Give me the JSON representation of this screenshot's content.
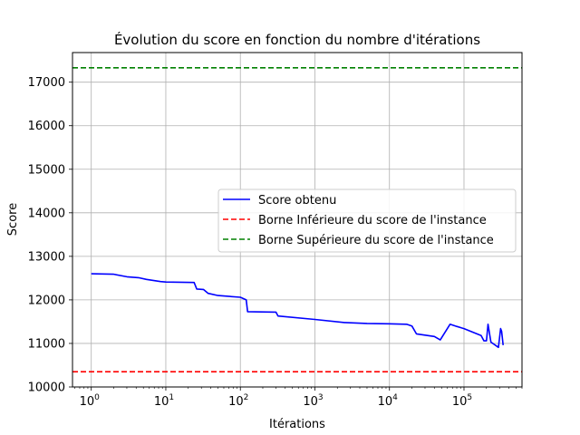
{
  "chart_data": {
    "type": "line",
    "title": "Évolution du score en fonction du nombre d'itérations",
    "xlabel": "Itérations",
    "ylabel": "Score",
    "xscale": "log",
    "xlim": [
      0.56,
      600000
    ],
    "ylim": [
      10000,
      17680
    ],
    "grid": true,
    "legend_position": "center-right",
    "x_ticks": [
      {
        "base": "10",
        "exp": "0",
        "value": 1
      },
      {
        "base": "10",
        "exp": "1",
        "value": 10
      },
      {
        "base": "10",
        "exp": "2",
        "value": 100
      },
      {
        "base": "10",
        "exp": "3",
        "value": 1000
      },
      {
        "base": "10",
        "exp": "4",
        "value": 10000
      },
      {
        "base": "10",
        "exp": "5",
        "value": 100000
      }
    ],
    "y_ticks": [
      "10000",
      "11000",
      "12000",
      "13000",
      "14000",
      "15000",
      "16000",
      "17000"
    ],
    "series": [
      {
        "name": "Score obtenu",
        "color": "#0000ff",
        "style": "solid",
        "x": [
          1,
          2,
          3,
          4.3,
          5.5,
          8.5,
          10,
          24,
          26,
          32,
          37,
          50,
          100,
          120,
          125,
          300,
          320,
          1000,
          2500,
          5000,
          10000,
          17000,
          20000,
          23000,
          40000,
          48000,
          65000,
          80000,
          100000,
          170000,
          185000,
          200000,
          210000,
          230000,
          290000,
          310000,
          320000,
          335000
        ],
        "y": [
          12600,
          12590,
          12530,
          12510,
          12470,
          12420,
          12410,
          12400,
          12250,
          12240,
          12150,
          12100,
          12060,
          12000,
          11730,
          11720,
          11630,
          11550,
          11480,
          11460,
          11450,
          11440,
          11400,
          11220,
          11160,
          11080,
          11440,
          11390,
          11340,
          11180,
          11060,
          11060,
          11440,
          11030,
          10910,
          11340,
          11280,
          10960
        ]
      },
      {
        "name": "Borne Inférieure du score de l'instance",
        "color": "#ff0000",
        "style": "dashed",
        "y": 10350
      },
      {
        "name": "Borne Supérieure du score de l'instance",
        "color": "#008000",
        "style": "dashed",
        "y": 17330
      }
    ]
  }
}
